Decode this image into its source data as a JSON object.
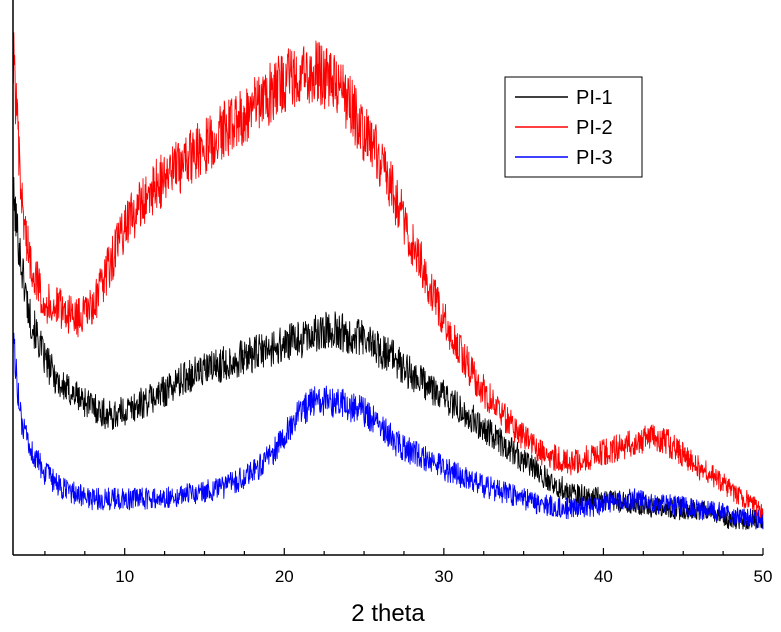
{
  "chart_data": {
    "type": "line",
    "title": "",
    "xlabel": "2 theta",
    "ylabel": "",
    "xlim": [
      3,
      50
    ],
    "ylim": [
      0,
      100
    ],
    "x_ticks": [
      10,
      20,
      30,
      40,
      50
    ],
    "x_minor_step": 2.5,
    "y_ticks_labeled": false,
    "grid": false,
    "legend_position": "top-right",
    "noise": 3.0,
    "series": [
      {
        "name": "PI-1",
        "color": "#000000",
        "x": [
          3,
          3.5,
          4,
          5,
          6,
          7,
          8,
          9,
          10,
          12,
          14,
          16,
          18,
          20,
          21,
          22,
          23,
          24,
          25,
          26,
          27,
          28,
          30,
          32,
          34,
          36,
          38,
          40,
          42,
          44,
          46,
          48,
          50
        ],
        "y": [
          66,
          53,
          43,
          34,
          29,
          27,
          25,
          23,
          24,
          27,
          31,
          33,
          35,
          37,
          38,
          39,
          40,
          39,
          38,
          36,
          34,
          31,
          27,
          22,
          17,
          12,
          8,
          7,
          6,
          5,
          5,
          3,
          3
        ]
      },
      {
        "name": "PI-2",
        "color": "#ff0000",
        "x": [
          3,
          3.5,
          4,
          5,
          6,
          7,
          8,
          9,
          10,
          12,
          14,
          16,
          18,
          20,
          21,
          22,
          23,
          24,
          25,
          26,
          27,
          28,
          30,
          32,
          34,
          36,
          38,
          40,
          42,
          43,
          44,
          46,
          48,
          50
        ],
        "y": [
          95,
          66,
          54,
          45,
          44,
          42,
          44,
          52,
          60,
          68,
          73,
          78,
          83,
          88,
          90,
          90,
          88,
          84,
          78,
          73,
          65,
          57,
          42,
          30,
          22,
          16,
          14,
          16,
          18,
          19,
          18,
          13,
          9,
          5
        ]
      },
      {
        "name": "PI-3",
        "color": "#0000ff",
        "x": [
          3,
          3.5,
          4,
          5,
          6,
          7,
          8,
          9,
          10,
          12,
          14,
          16,
          18,
          19,
          20,
          21,
          22,
          23,
          24,
          25,
          26,
          27,
          28,
          30,
          32,
          34,
          36,
          38,
          40,
          42,
          44,
          46,
          48,
          50
        ],
        "y": [
          38,
          22,
          17,
          12,
          9,
          8,
          7,
          7,
          7,
          7,
          8,
          9,
          12,
          15,
          19,
          24,
          26,
          26,
          25,
          24,
          21,
          18,
          16,
          13,
          10,
          8,
          6,
          5,
          6,
          7,
          6,
          5,
          4,
          3
        ]
      }
    ]
  }
}
